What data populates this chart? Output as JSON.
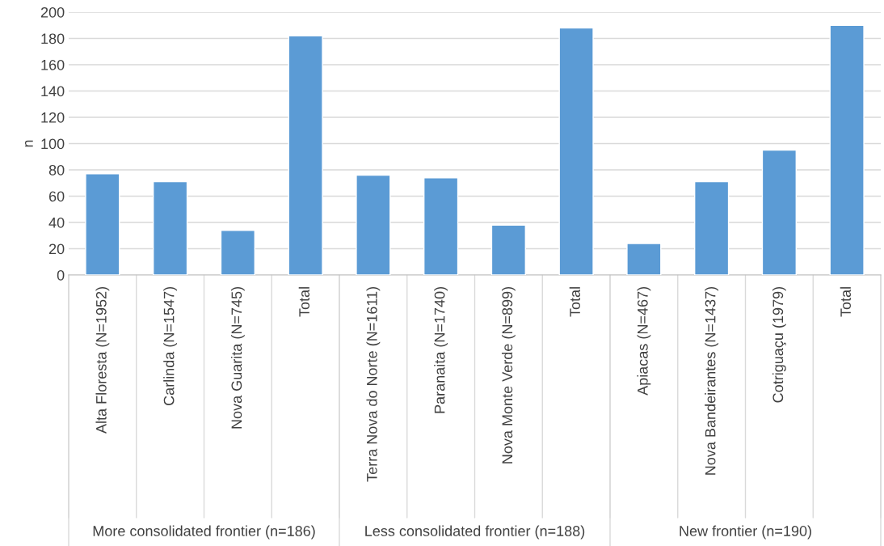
{
  "chart_data": {
    "type": "bar",
    "ylabel": "n",
    "categories": [
      "Alta Floresta (N=1952)",
      "Carlinda (N=1547)",
      "Nova Guarita (N=745)",
      "Total",
      "Terra Nova do Norte (N=1611)",
      "Paranaita (N=1740)",
      "Nova Monte Verde (N=899)",
      "Total",
      "Apiacas (N=467)",
      "Nova Bandeirantes (N=1437)",
      "Cotriguaçu (1979)",
      "Total"
    ],
    "values": [
      77,
      71,
      34,
      182,
      76,
      74,
      38,
      188,
      24,
      71,
      95,
      190
    ],
    "color": "#5b9bd5",
    "ylim": [
      0,
      200
    ],
    "yticks": [
      0,
      20,
      40,
      60,
      80,
      100,
      120,
      140,
      160,
      180,
      200
    ],
    "grid": "y",
    "annotations": [
      "More consolidated frontier (n=186)",
      "Less consolidated frontier (n=188)",
      "New frontier (n=190)"
    ]
  }
}
